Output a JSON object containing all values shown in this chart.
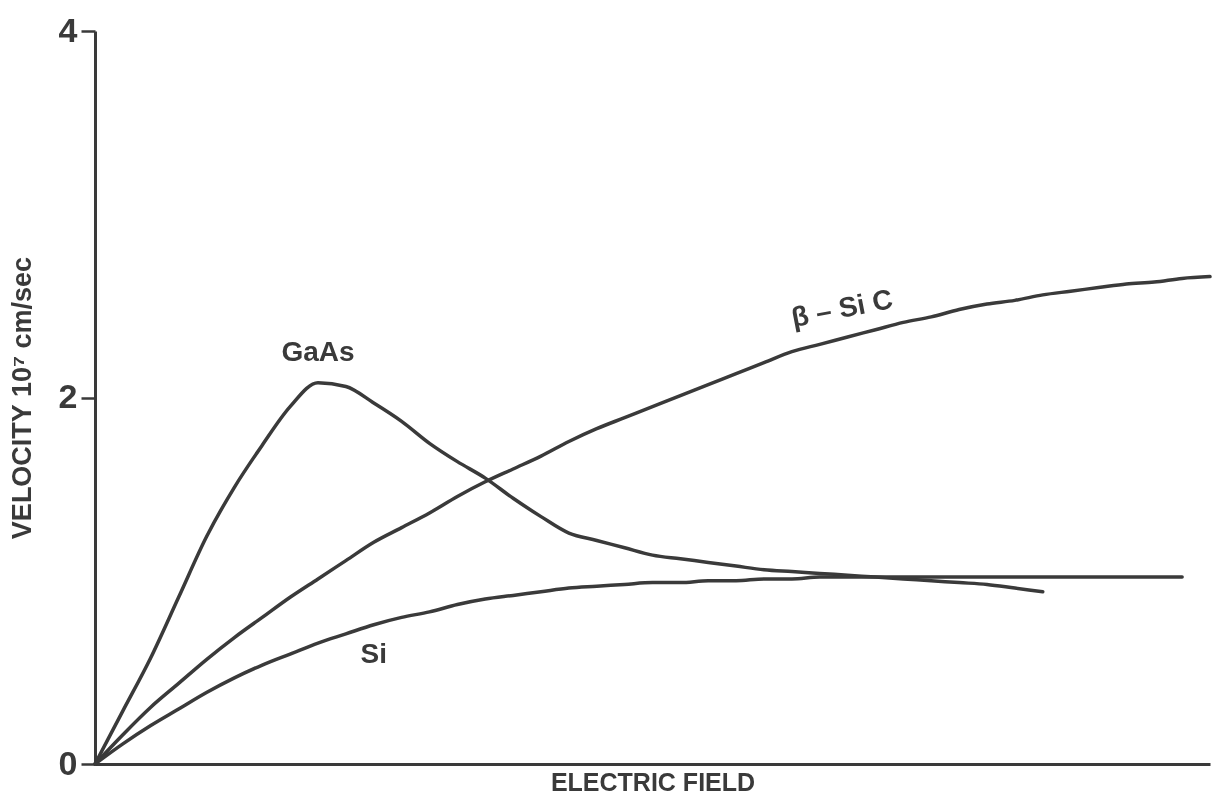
{
  "chart_data": {
    "type": "line",
    "xlabel": "ELECTRIC FIELD",
    "ylabel": "VELOCITY 10⁷ cm/sec",
    "categories": [
      null,
      null,
      null,
      null,
      null,
      null,
      null,
      null,
      null,
      null,
      null,
      null,
      null,
      null,
      null,
      null,
      null,
      null,
      null,
      null,
      null,
      null,
      null,
      null,
      null,
      null,
      null,
      null,
      null,
      null,
      null,
      null,
      null,
      null,
      null,
      null,
      null,
      null,
      null,
      null,
      null
    ],
    "ylim": [
      0,
      4
    ],
    "yticks": [
      0,
      2,
      4
    ],
    "tick_labels": "y",
    "series": [
      {
        "name": "GaAs",
        "color": "#3a3a3a",
        "values": [
          0,
          0.29,
          0.58,
          0.91,
          1.24,
          1.51,
          1.74,
          1.95,
          2.08,
          2.06,
          1.97,
          1.87,
          1.75,
          1.65,
          1.56,
          1.45,
          1.35,
          1.26,
          1.22,
          1.18,
          1.14,
          1.12,
          1.1,
          1.08,
          1.06,
          1.05,
          1.04,
          1.03,
          1.02,
          1.01,
          1.0,
          0.99,
          0.98,
          0.96,
          0.94,
          null,
          null,
          null,
          null,
          null,
          null
        ]
      },
      {
        "name": "β – Si C",
        "color": "#3a3a3a",
        "values": [
          0,
          0.16,
          0.31,
          0.44,
          0.57,
          0.69,
          0.8,
          0.91,
          1.01,
          1.11,
          1.21,
          1.29,
          1.37,
          1.46,
          1.54,
          1.61,
          1.68,
          1.76,
          1.83,
          1.89,
          1.95,
          2.01,
          2.07,
          2.13,
          2.19,
          2.25,
          2.29,
          2.33,
          2.37,
          2.41,
          2.44,
          2.48,
          2.51,
          2.53,
          2.56,
          2.58,
          2.6,
          2.62,
          2.63,
          2.65,
          2.66
        ]
      },
      {
        "name": "Si",
        "color": "#3a3a3a",
        "values": [
          0,
          0.11,
          0.21,
          0.3,
          0.39,
          0.47,
          0.54,
          0.6,
          0.66,
          0.71,
          0.76,
          0.8,
          0.83,
          0.87,
          0.9,
          0.92,
          0.94,
          0.96,
          0.97,
          0.98,
          0.99,
          0.99,
          1.0,
          1.0,
          1.01,
          1.01,
          1.02,
          1.02,
          1.02,
          1.02,
          1.02,
          1.02,
          1.02,
          1.02,
          1.02,
          1.02,
          1.02,
          1.02,
          1.02,
          1.02,
          null
        ]
      }
    ]
  }
}
